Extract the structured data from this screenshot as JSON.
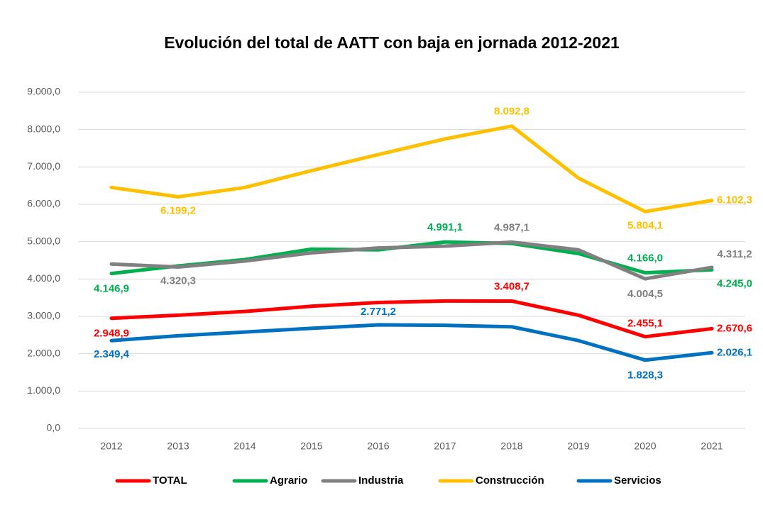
{
  "chart_data": {
    "type": "line",
    "title": "Evolución del total de AATT con baja en jornada 2012-2021",
    "categories": [
      "2012",
      "2013",
      "2014",
      "2015",
      "2016",
      "2017",
      "2018",
      "2019",
      "2020",
      "2021"
    ],
    "ylim": [
      0,
      9000
    ],
    "yticks": [
      {
        "value": 0,
        "label": "0,0"
      },
      {
        "value": 1000,
        "label": "1.000,0"
      },
      {
        "value": 2000,
        "label": "2.000,0"
      },
      {
        "value": 3000,
        "label": "3.000,0"
      },
      {
        "value": 4000,
        "label": "4.000,0"
      },
      {
        "value": 5000,
        "label": "5.000,0"
      },
      {
        "value": 6000,
        "label": "6.000,0"
      },
      {
        "value": 7000,
        "label": "7.000,0"
      },
      {
        "value": 8000,
        "label": "8.000,0"
      },
      {
        "value": 9000,
        "label": "9.000,0"
      }
    ],
    "grid": true,
    "series": [
      {
        "name": "TOTAL",
        "color": "#ff0000",
        "values": [
          2948.9,
          3030,
          3130,
          3270,
          3370,
          3410,
          3408.7,
          3030,
          2455.1,
          2670.6
        ],
        "value_labels": [
          "2.948,9",
          null,
          null,
          null,
          null,
          null,
          "3.408,7",
          null,
          "2.455,1",
          "2.670,6"
        ]
      },
      {
        "name": "Agrario",
        "color": "#00b050",
        "values": [
          4146.9,
          4350,
          4520,
          4800,
          4780,
          4991.1,
          4950,
          4680,
          4166.0,
          4245.0
        ],
        "value_labels": [
          "4.146,9",
          null,
          null,
          null,
          null,
          "4.991,1",
          null,
          null,
          "4.166,0",
          "4.245,0"
        ]
      },
      {
        "name": "Industria",
        "color": "#808080",
        "values": [
          4400,
          4320.3,
          4480,
          4700,
          4830,
          4880,
          4987.1,
          4780,
          4004.5,
          4311.2
        ],
        "value_labels": [
          null,
          "4.320,3",
          null,
          null,
          null,
          null,
          "4.987,1",
          null,
          "4.004,5",
          "4.311,2"
        ]
      },
      {
        "name": "Construcción",
        "color": "#ffc000",
        "values": [
          6450,
          6199.2,
          6450,
          6900,
          7330,
          7750,
          8092.8,
          6700,
          5804.1,
          6102.3
        ],
        "value_labels": [
          null,
          "6.199,2",
          null,
          null,
          null,
          null,
          "8.092,8",
          null,
          "5.804,1",
          "6.102,3"
        ]
      },
      {
        "name": "Servicios",
        "color": "#0070c0",
        "values": [
          2349.4,
          2480,
          2580,
          2680,
          2771.2,
          2760,
          2720,
          2350,
          1828.3,
          2026.1
        ],
        "value_labels": [
          "2.349,4",
          null,
          null,
          null,
          "2.771,2",
          null,
          null,
          null,
          "1.828,3",
          "2.026,1"
        ]
      }
    ]
  }
}
